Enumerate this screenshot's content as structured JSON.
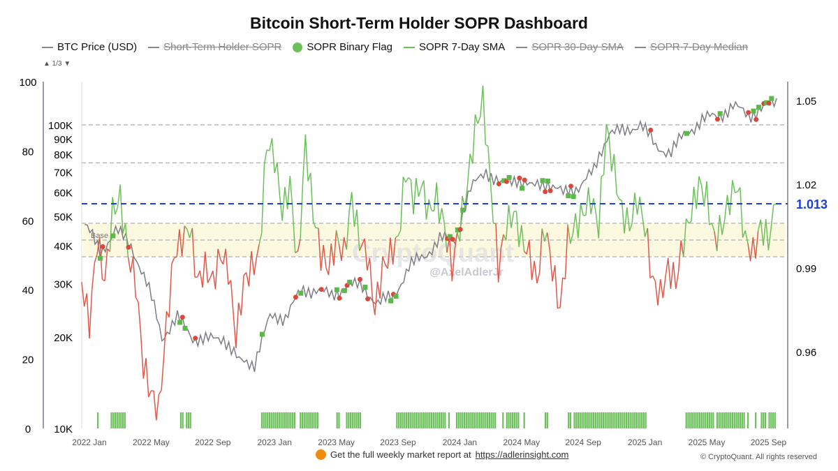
{
  "chart_data": {
    "type": "line",
    "title": "Bitcoin Short-Term Holder SOPR Dashboard",
    "legend": [
      {
        "label": "BTC Price (USD)",
        "color": "#888888",
        "hidden": false,
        "kind": "line"
      },
      {
        "label": "Short-Term Holder SOPR",
        "color": "#888888",
        "hidden": true,
        "kind": "line"
      },
      {
        "label": "SOPR Binary Flag",
        "color": "#6cc05a",
        "hidden": false,
        "kind": "dot"
      },
      {
        "label": "SOPR 7-Day SMA",
        "color": "#6cc05a",
        "hidden": false,
        "kind": "line"
      },
      {
        "label": "SOPR 30-Day SMA",
        "color": "#888888",
        "hidden": true,
        "kind": "line"
      },
      {
        "label": "SOPR 7-Day Median",
        "color": "#888888",
        "hidden": true,
        "kind": "line"
      }
    ],
    "legend_pager": "1/3",
    "x_ticks": [
      "2022 Jan",
      "2022 May",
      "2022 Sep",
      "2023 Jan",
      "2023 May",
      "2023 Sep",
      "2024 Jan",
      "2024 May",
      "2024 Sep",
      "2025 Jan",
      "2025 May",
      "2025 Sep"
    ],
    "flag_axis": {
      "ticks": [
        "0",
        "20",
        "40",
        "60",
        "80",
        "100"
      ],
      "range": [
        0,
        100
      ]
    },
    "price_axis": {
      "ticks": [
        "10K",
        "20K",
        "30K",
        "40K",
        "50K",
        "60K",
        "70K",
        "80K",
        "90K",
        "100K"
      ],
      "scale": "log",
      "range": [
        10000,
        100000
      ]
    },
    "sopr_axis": {
      "ticks": [
        "0.96",
        "0.99",
        "1.02",
        "1.05"
      ],
      "range": [
        0.955,
        1.055
      ]
    },
    "current_value_label": "1.013",
    "current_value": 1.013,
    "baseline_label": "Base",
    "band": [
      0.994,
      1.006
    ],
    "price_monthly_from_2022_jan": [
      47000,
      38000,
      45000,
      40000,
      30000,
      20000,
      23000,
      20000,
      19500,
      20000,
      16500,
      16500,
      23000,
      23500,
      28000,
      29000,
      27000,
      30000,
      29000,
      26000,
      27000,
      34000,
      37000,
      42000,
      42000,
      61000,
      71000,
      63000,
      67000,
      62000,
      65000,
      59000,
      63000,
      70000,
      96000,
      94000,
      102000,
      84000,
      82000,
      94000,
      104000,
      107000,
      115000,
      108000,
      114000,
      120000
    ],
    "sopr_7d_sma_semimonthly_from_2022_jan": [
      0.985,
      0.97,
      1.0,
      0.985,
      1.01,
      1.015,
      0.995,
      0.985,
      0.955,
      0.945,
      0.939,
      0.97,
      0.995,
      1.0,
      1.005,
      0.985,
      0.99,
      0.985,
      0.995,
      0.99,
      0.965,
      0.985,
      0.99,
      0.995,
      1.035,
      1.03,
      1.01,
      1.02,
      0.99,
      1.035,
      1.01,
      0.995,
      0.99,
      1.0,
      0.995,
      1.015,
      1.0,
      0.995,
      0.975,
      0.99,
      0.995,
      1.0,
      1.025,
      1.015,
      1.02,
      1.01,
      1.015,
      1.005,
      0.99,
      1.005,
      1.02,
      1.04,
      1.05,
      1.02,
      0.99,
      1.005,
      1.01,
      1.0,
      0.995,
      0.985,
      1.005,
      0.99,
      0.975,
      1.0,
      1.005,
      1.01,
      1.015,
      1.005,
      1.04,
      1.025,
      1.01,
      1.005,
      1.015,
      1.005,
      0.985,
      0.98,
      0.99,
      0.985,
      1.0,
      1.01,
      1.02,
      1.015,
      1.0,
      1.005,
      1.015,
      1.02,
      1.0,
      0.995,
      1.005,
      1.0,
      1.013
    ]
  },
  "watermark": {
    "brand": "CryptoQuant",
    "author": "@AxelAdlerJr"
  },
  "footer": {
    "text": "Get the full weekly market report at",
    "link": "https://adlerinsight.com",
    "copyright": "© CryptoQuant. All rights reserved"
  }
}
